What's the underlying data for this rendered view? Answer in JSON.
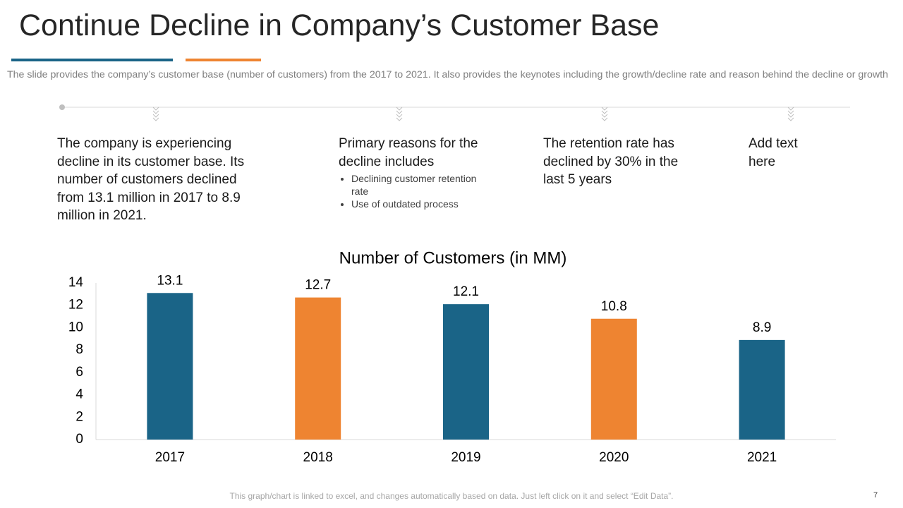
{
  "header": {
    "title": "Continue Decline in Company’s Customer Base",
    "subtitle": "The slide provides the company’s customer base (number of customers) from the 2017 to 2021. It also provides the keynotes including the growth/decline rate and reason behind the decline or growth"
  },
  "notes": [
    {
      "text": "The company is experiencing decline in its customer base. Its number of customers declined from 13.1 million in 2017 to 8.9 million in 2021."
    },
    {
      "text": "Primary reasons for the decline includes",
      "bullets": [
        "Declining customer retention rate",
        "Use of outdated process"
      ]
    },
    {
      "text": "The retention rate has declined by 30% in the last 5 years"
    },
    {
      "text": "Add text here"
    }
  ],
  "chart_data": {
    "type": "bar",
    "title": "Number of Customers (in MM)",
    "categories": [
      "2017",
      "2018",
      "2019",
      "2020",
      "2021"
    ],
    "values": [
      13.1,
      12.7,
      12.1,
      10.8,
      8.9
    ],
    "colors": [
      "#1a6487",
      "#ee8431",
      "#1a6487",
      "#ee8431",
      "#1a6487"
    ],
    "ylim": [
      0,
      14
    ],
    "yticks": [
      0,
      2,
      4,
      6,
      8,
      10,
      12,
      14
    ],
    "grid": false
  },
  "footer": {
    "note": "This graph/chart is linked to excel, and changes automatically based on data. Just left click on it and select “Edit Data”.",
    "page_number": "7"
  }
}
